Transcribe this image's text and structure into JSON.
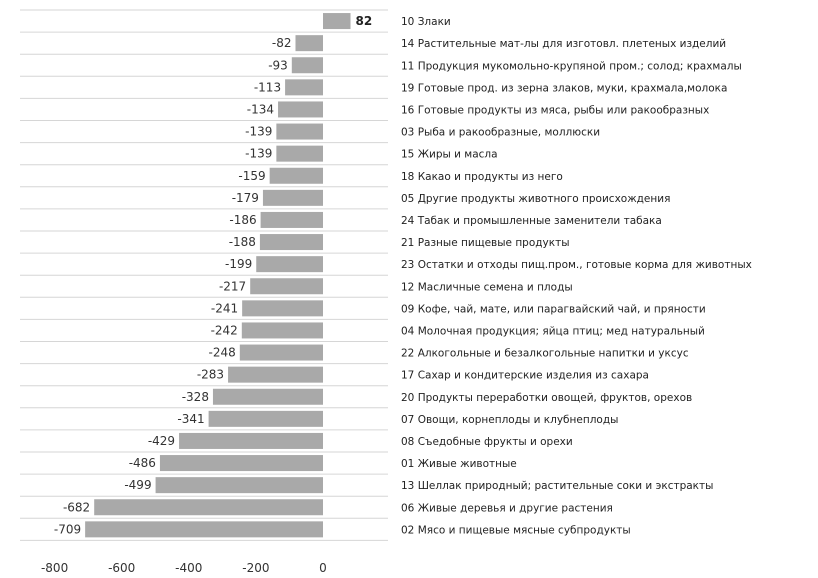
{
  "chart_data": {
    "type": "bar",
    "orientation": "horizontal",
    "title": "",
    "xlabel": "",
    "ylabel": "",
    "xlim": [
      -800,
      100
    ],
    "x_ticks": [
      -800,
      -600,
      -400,
      -200,
      0
    ],
    "grid": true,
    "legend": "none",
    "bar_color": "#a9a9a9",
    "categories": [
      "10 Злаки",
      "14 Растительные мат-лы для изготовл. плетеных изделий",
      "11 Продукция мукомольно-крупяной пром.; солод; крахмалы",
      "19 Готовые прод. из зерна злаков, муки, крахмала,молока",
      "16 Готовые продукты из мяса, рыбы или ракообразных",
      "03 Рыба и ракообразные, моллюски",
      "15 Жиры и масла",
      "18 Какао и продукты из него",
      "05 Другие продукты животного происхождения",
      "24 Табак и промышленные заменители табака",
      "21 Разные пищевые продукты",
      "23 Остатки и отходы пищ.пром., готовые корма для животных",
      "12 Масличные семена и плоды",
      "09 Кофе, чай, мате, или парагвайский чай, и пряности",
      "04 Молочная продукция; яйца птиц; мед натуральный",
      "22 Алкогольные и безалкогольные напитки и уксус",
      "17 Сахар и кондитерские изделия из сахара",
      "20 Продукты переработки овощей, фруктов, орехов",
      "07 Овощи, корнеплоды и клубнеплоды",
      "08 Съедобные фрукты и орехи",
      "01 Живые животные",
      "13 Шеллак природный; растительные соки и экстракты",
      "06 Живые деревья и другие растения",
      "02 Мясо и пищевые мясные субпродукты"
    ],
    "values": [
      82,
      -82,
      -93,
      -113,
      -134,
      -139,
      -139,
      -159,
      -179,
      -186,
      -188,
      -199,
      -217,
      -241,
      -242,
      -248,
      -283,
      -328,
      -341,
      -429,
      -486,
      -499,
      -682,
      -709
    ]
  }
}
